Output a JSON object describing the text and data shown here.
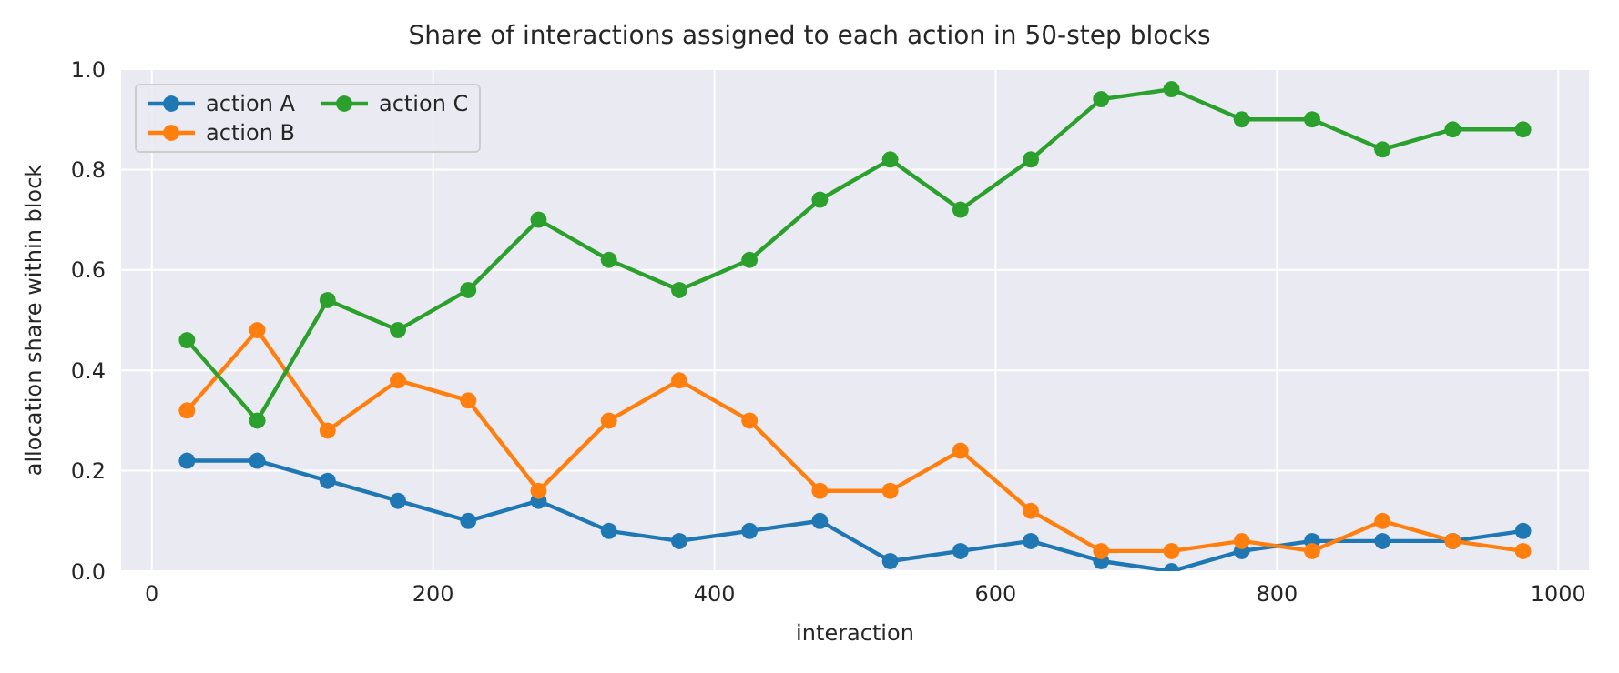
{
  "chart_data": {
    "type": "line",
    "title": "Share of interactions assigned to each action in 50-step blocks",
    "xlabel": "interaction",
    "ylabel": "allocation share within block",
    "x": [
      25,
      75,
      125,
      175,
      225,
      275,
      325,
      375,
      425,
      475,
      525,
      575,
      625,
      675,
      725,
      775,
      825,
      875,
      925,
      975
    ],
    "series": [
      {
        "name": "action A",
        "color": "#1f77b4",
        "values": [
          0.22,
          0.22,
          0.18,
          0.14,
          0.1,
          0.14,
          0.08,
          0.06,
          0.08,
          0.1,
          0.02,
          0.04,
          0.06,
          0.02,
          0.0,
          0.04,
          0.06,
          0.06,
          0.06,
          0.08
        ]
      },
      {
        "name": "action B",
        "color": "#ff7f0e",
        "values": [
          0.32,
          0.48,
          0.28,
          0.38,
          0.34,
          0.16,
          0.3,
          0.38,
          0.3,
          0.16,
          0.16,
          0.24,
          0.12,
          0.04,
          0.04,
          0.06,
          0.04,
          0.1,
          0.06,
          0.04
        ]
      },
      {
        "name": "action C",
        "color": "#2ca02c",
        "values": [
          0.46,
          0.3,
          0.54,
          0.48,
          0.56,
          0.7,
          0.62,
          0.56,
          0.62,
          0.74,
          0.82,
          0.72,
          0.82,
          0.94,
          0.96,
          0.9,
          0.9,
          0.84,
          0.88,
          0.88
        ]
      }
    ],
    "xlim": [
      -22.5,
      1022.5
    ],
    "xticks": [
      0,
      200,
      400,
      600,
      800,
      1000
    ],
    "ylim": [
      0,
      1.0
    ],
    "yticks": [
      {
        "value": 0,
        "label": "0.0"
      },
      0.2,
      0.4,
      0.6,
      0.8,
      {
        "value": 1.0,
        "label": "1.0"
      }
    ],
    "grid": true,
    "legend": "top left",
    "marker": "circle",
    "line_style": "solid"
  }
}
